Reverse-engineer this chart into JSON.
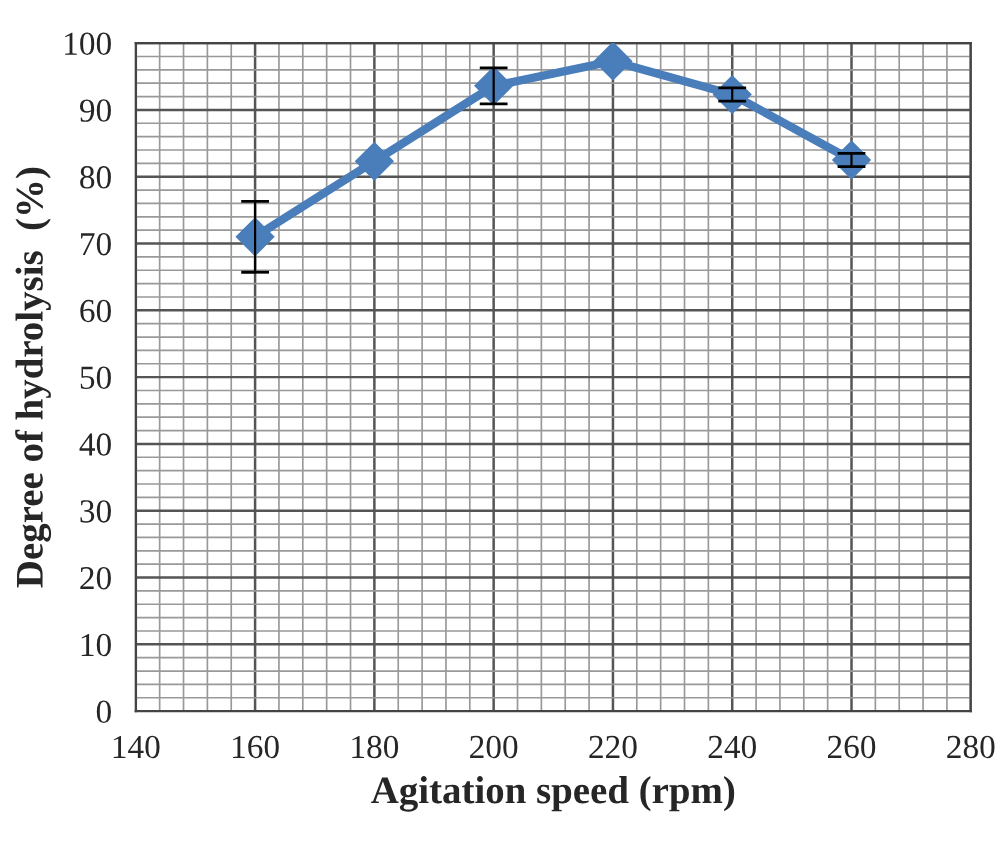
{
  "chart_data": {
    "type": "line",
    "xlabel": "Agitation speed (rpm)",
    "ylabel": "Degree of hydrolysis  (%)",
    "x": [
      160,
      180,
      200,
      220,
      240,
      260
    ],
    "series": [
      {
        "color": "#4a7ebb",
        "values": [
          71,
          82.3,
          93.6,
          97.3,
          92.3,
          82.5
        ],
        "errors": [
          5.3,
          null,
          2.7,
          null,
          1,
          1
        ]
      }
    ],
    "xlim": [
      140,
      280
    ],
    "xticks": [
      140,
      160,
      180,
      200,
      220,
      240,
      260,
      280
    ],
    "ylim": [
      0,
      100
    ],
    "yticks": [
      0,
      10,
      20,
      30,
      40,
      50,
      60,
      70,
      80,
      90,
      100
    ],
    "grid": true,
    "marker": "diamond",
    "line_style": "solid"
  }
}
